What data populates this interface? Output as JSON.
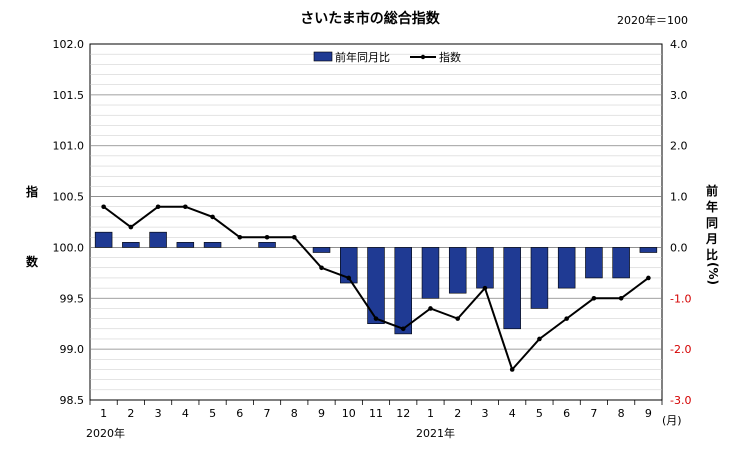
{
  "title": "さいたま市の総合指数",
  "base_note": "2020年＝100",
  "left_axis_label": [
    "指",
    "数"
  ],
  "right_axis_label": [
    "前",
    "年",
    "同",
    "月",
    "比",
    "(%)"
  ],
  "month_unit": "(月)",
  "year_labels": {
    "y2020": "2020年",
    "y2021": "2021年"
  },
  "colors": {
    "bar": "#1f3a93",
    "line": "#000000",
    "negative_tick": "#d40000"
  },
  "chart_data": {
    "type": "bar+line",
    "categories": [
      "1",
      "2",
      "3",
      "4",
      "5",
      "6",
      "7",
      "8",
      "9",
      "10",
      "11",
      "12",
      "1",
      "2",
      "3",
      "4",
      "5",
      "6",
      "7",
      "8",
      "9"
    ],
    "series": [
      {
        "name": "前年同月比",
        "axis": "right",
        "type": "bar",
        "values": [
          0.3,
          0.1,
          0.3,
          0.1,
          0.1,
          0.0,
          0.1,
          0.0,
          -0.1,
          -0.7,
          -1.5,
          -1.7,
          -1.0,
          -0.9,
          -0.8,
          -1.6,
          -1.2,
          -0.8,
          -0.6,
          -0.6,
          -0.1
        ]
      },
      {
        "name": "指数",
        "axis": "left",
        "type": "line",
        "values": [
          100.4,
          100.2,
          100.4,
          100.4,
          100.3,
          100.1,
          100.1,
          100.1,
          99.8,
          99.7,
          99.3,
          99.2,
          99.4,
          99.3,
          99.6,
          98.8,
          99.1,
          99.3,
          99.5,
          99.5,
          99.7
        ]
      }
    ],
    "left_axis": {
      "ylim": [
        98.5,
        102.0
      ],
      "ticks": [
        "98.5",
        "99.0",
        "99.5",
        "100.0",
        "100.5",
        "101.0",
        "101.5",
        "102.0"
      ]
    },
    "right_axis": {
      "ylim": [
        -3.0,
        4.0
      ],
      "ticks": [
        "-3.0",
        "-2.0",
        "-1.0",
        "0.0",
        "1.0",
        "2.0",
        "3.0",
        "4.0"
      ]
    },
    "grid": true,
    "legend_position": "top-center"
  }
}
